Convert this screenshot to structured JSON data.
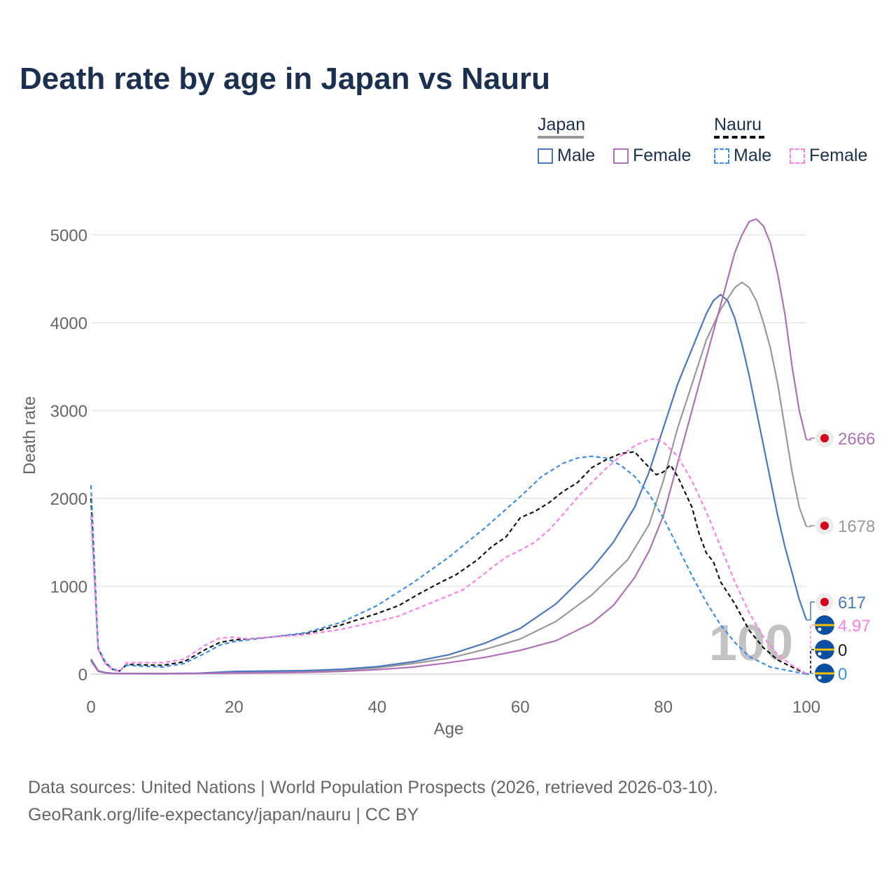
{
  "title": "Death rate by age in Japan vs Nauru",
  "legend": {
    "japan": {
      "title": "Japan",
      "male": "Male",
      "female": "Female"
    },
    "nauru": {
      "title": "Nauru",
      "male": "Male",
      "female": "Female"
    }
  },
  "source": {
    "line1": "Data sources: United Nations | World Population Prospects (2026, retrieved 2026-03-10).",
    "line2": "GeoRank.org/life-expectancy/japan/nauru | CC BY"
  },
  "colors": {
    "japan_total": "#999999",
    "japan_male": "#4a78c0",
    "japan_female": "#b070b8",
    "nauru_total": "#111111",
    "nauru_male": "#3d8ee8",
    "nauru_female": "#ff80e8",
    "japan_flag_red": "#d6001c",
    "nauru_flag_blue": "#0b4fa3",
    "nauru_flag_yellow": "#f2c200"
  },
  "chart_data": {
    "type": "line",
    "title": "Death rate by age in Japan vs Nauru",
    "xlabel": "Age",
    "ylabel": "Death rate",
    "xlim": [
      0,
      100
    ],
    "ylim": [
      0,
      5200
    ],
    "xticks": [
      0,
      20,
      40,
      60,
      80,
      100
    ],
    "yticks": [
      0,
      1000,
      2000,
      3000,
      4000,
      5000
    ],
    "grid": true,
    "watermark": "100",
    "series": [
      {
        "name": "Japan Total",
        "country": "Japan",
        "sex": "Total",
        "dash": false,
        "color_key": "japan_total",
        "end_label": "1678",
        "points": [
          [
            0,
            160
          ],
          [
            1,
            35
          ],
          [
            2,
            15
          ],
          [
            3,
            8
          ],
          [
            5,
            6
          ],
          [
            10,
            5
          ],
          [
            15,
            8
          ],
          [
            20,
            20
          ],
          [
            25,
            25
          ],
          [
            30,
            30
          ],
          [
            35,
            45
          ],
          [
            40,
            70
          ],
          [
            45,
            120
          ],
          [
            50,
            180
          ],
          [
            55,
            280
          ],
          [
            60,
            400
          ],
          [
            65,
            600
          ],
          [
            70,
            900
          ],
          [
            75,
            1300
          ],
          [
            78,
            1700
          ],
          [
            80,
            2200
          ],
          [
            82,
            2800
          ],
          [
            84,
            3300
          ],
          [
            86,
            3800
          ],
          [
            88,
            4150
          ],
          [
            90,
            4400
          ],
          [
            91,
            4460
          ],
          [
            92,
            4400
          ],
          [
            93,
            4250
          ],
          [
            94,
            4000
          ],
          [
            95,
            3700
          ],
          [
            96,
            3300
          ],
          [
            97,
            2800
          ],
          [
            98,
            2300
          ],
          [
            99,
            1900
          ],
          [
            100,
            1678
          ]
        ]
      },
      {
        "name": "Japan Male",
        "country": "Japan",
        "sex": "Male",
        "dash": false,
        "color_key": "japan_male",
        "end_label": "617",
        "points": [
          [
            0,
            170
          ],
          [
            1,
            38
          ],
          [
            2,
            17
          ],
          [
            3,
            9
          ],
          [
            5,
            7
          ],
          [
            10,
            6
          ],
          [
            15,
            10
          ],
          [
            20,
            30
          ],
          [
            25,
            35
          ],
          [
            30,
            40
          ],
          [
            35,
            55
          ],
          [
            40,
            85
          ],
          [
            45,
            140
          ],
          [
            50,
            220
          ],
          [
            55,
            350
          ],
          [
            60,
            520
          ],
          [
            65,
            800
          ],
          [
            70,
            1200
          ],
          [
            73,
            1500
          ],
          [
            76,
            1900
          ],
          [
            78,
            2300
          ],
          [
            80,
            2800
          ],
          [
            82,
            3300
          ],
          [
            84,
            3700
          ],
          [
            86,
            4100
          ],
          [
            87,
            4250
          ],
          [
            88,
            4320
          ],
          [
            89,
            4250
          ],
          [
            90,
            4050
          ],
          [
            91,
            3750
          ],
          [
            92,
            3400
          ],
          [
            93,
            3000
          ],
          [
            94,
            2600
          ],
          [
            95,
            2200
          ],
          [
            96,
            1800
          ],
          [
            97,
            1450
          ],
          [
            98,
            1150
          ],
          [
            99,
            850
          ],
          [
            100,
            617
          ]
        ]
      },
      {
        "name": "Japan Female",
        "country": "Japan",
        "sex": "Female",
        "dash": false,
        "color_key": "japan_female",
        "end_label": "2666",
        "points": [
          [
            0,
            150
          ],
          [
            1,
            32
          ],
          [
            2,
            13
          ],
          [
            3,
            7
          ],
          [
            5,
            5
          ],
          [
            10,
            4
          ],
          [
            15,
            6
          ],
          [
            20,
            12
          ],
          [
            25,
            15
          ],
          [
            30,
            20
          ],
          [
            35,
            30
          ],
          [
            40,
            50
          ],
          [
            45,
            80
          ],
          [
            50,
            130
          ],
          [
            55,
            190
          ],
          [
            60,
            270
          ],
          [
            65,
            380
          ],
          [
            70,
            580
          ],
          [
            73,
            780
          ],
          [
            76,
            1100
          ],
          [
            78,
            1400
          ],
          [
            80,
            1800
          ],
          [
            82,
            2400
          ],
          [
            84,
            3000
          ],
          [
            86,
            3600
          ],
          [
            88,
            4200
          ],
          [
            89,
            4500
          ],
          [
            90,
            4800
          ],
          [
            91,
            5000
          ],
          [
            92,
            5150
          ],
          [
            93,
            5180
          ],
          [
            94,
            5100
          ],
          [
            95,
            4900
          ],
          [
            96,
            4550
          ],
          [
            97,
            4100
          ],
          [
            98,
            3500
          ],
          [
            99,
            3000
          ],
          [
            100,
            2666
          ]
        ]
      },
      {
        "name": "Nauru Total",
        "country": "Nauru",
        "sex": "Total",
        "dash": true,
        "color_key": "nauru_total",
        "end_label": "0",
        "points": [
          [
            0,
            2000
          ],
          [
            1,
            290
          ],
          [
            2,
            130
          ],
          [
            3,
            55
          ],
          [
            4,
            35
          ],
          [
            5,
            110
          ],
          [
            10,
            100
          ],
          [
            13,
            140
          ],
          [
            16,
            280
          ],
          [
            18,
            360
          ],
          [
            20,
            390
          ],
          [
            22,
            400
          ],
          [
            25,
            420
          ],
          [
            30,
            460
          ],
          [
            35,
            560
          ],
          [
            40,
            690
          ],
          [
            43,
            780
          ],
          [
            46,
            920
          ],
          [
            49,
            1050
          ],
          [
            51,
            1130
          ],
          [
            54,
            1300
          ],
          [
            56,
            1450
          ],
          [
            58,
            1560
          ],
          [
            60,
            1780
          ],
          [
            62,
            1850
          ],
          [
            64,
            1950
          ],
          [
            66,
            2080
          ],
          [
            68,
            2180
          ],
          [
            70,
            2350
          ],
          [
            72,
            2440
          ],
          [
            74,
            2510
          ],
          [
            76,
            2530
          ],
          [
            77,
            2440
          ],
          [
            79,
            2270
          ],
          [
            80,
            2300
          ],
          [
            81,
            2380
          ],
          [
            82,
            2250
          ],
          [
            84,
            1900
          ],
          [
            85,
            1600
          ],
          [
            86,
            1380
          ],
          [
            87,
            1280
          ],
          [
            88,
            1050
          ],
          [
            90,
            800
          ],
          [
            92,
            500
          ],
          [
            94,
            300
          ],
          [
            96,
            160
          ],
          [
            98,
            80
          ],
          [
            100,
            0
          ]
        ]
      },
      {
        "name": "Nauru Male",
        "country": "Nauru",
        "sex": "Male",
        "dash": true,
        "color_key": "nauru_male",
        "end_label": "0",
        "points": [
          [
            0,
            2150
          ],
          [
            1,
            300
          ],
          [
            2,
            140
          ],
          [
            3,
            60
          ],
          [
            4,
            40
          ],
          [
            5,
            100
          ],
          [
            10,
            80
          ],
          [
            13,
            120
          ],
          [
            16,
            240
          ],
          [
            18,
            330
          ],
          [
            20,
            370
          ],
          [
            22,
            390
          ],
          [
            25,
            420
          ],
          [
            30,
            470
          ],
          [
            35,
            590
          ],
          [
            40,
            780
          ],
          [
            45,
            1040
          ],
          [
            50,
            1330
          ],
          [
            55,
            1660
          ],
          [
            60,
            2020
          ],
          [
            63,
            2250
          ],
          [
            66,
            2400
          ],
          [
            68,
            2460
          ],
          [
            70,
            2480
          ],
          [
            72,
            2460
          ],
          [
            74,
            2380
          ],
          [
            76,
            2250
          ],
          [
            78,
            2050
          ],
          [
            80,
            1780
          ],
          [
            82,
            1450
          ],
          [
            84,
            1120
          ],
          [
            86,
            820
          ],
          [
            88,
            560
          ],
          [
            90,
            360
          ],
          [
            92,
            200
          ],
          [
            95,
            80
          ],
          [
            100,
            0
          ]
        ]
      },
      {
        "name": "Nauru Female",
        "country": "Nauru",
        "sex": "Female",
        "dash": true,
        "color_key": "nauru_female",
        "end_label": "4.97",
        "points": [
          [
            0,
            1800
          ],
          [
            1,
            280
          ],
          [
            2,
            120
          ],
          [
            3,
            50
          ],
          [
            4,
            30
          ],
          [
            5,
            130
          ],
          [
            10,
            130
          ],
          [
            13,
            170
          ],
          [
            16,
            330
          ],
          [
            18,
            410
          ],
          [
            20,
            420
          ],
          [
            22,
            400
          ],
          [
            25,
            420
          ],
          [
            30,
            450
          ],
          [
            35,
            510
          ],
          [
            40,
            600
          ],
          [
            43,
            660
          ],
          [
            46,
            760
          ],
          [
            49,
            860
          ],
          [
            52,
            960
          ],
          [
            54,
            1080
          ],
          [
            56,
            1210
          ],
          [
            58,
            1330
          ],
          [
            60,
            1410
          ],
          [
            62,
            1500
          ],
          [
            64,
            1640
          ],
          [
            66,
            1820
          ],
          [
            68,
            2010
          ],
          [
            70,
            2180
          ],
          [
            72,
            2340
          ],
          [
            74,
            2480
          ],
          [
            76,
            2600
          ],
          [
            78,
            2670
          ],
          [
            79,
            2680
          ],
          [
            80,
            2640
          ],
          [
            82,
            2480
          ],
          [
            84,
            2200
          ],
          [
            86,
            1850
          ],
          [
            88,
            1450
          ],
          [
            90,
            1050
          ],
          [
            92,
            700
          ],
          [
            94,
            420
          ],
          [
            96,
            220
          ],
          [
            98,
            100
          ],
          [
            100,
            5
          ]
        ]
      }
    ]
  }
}
